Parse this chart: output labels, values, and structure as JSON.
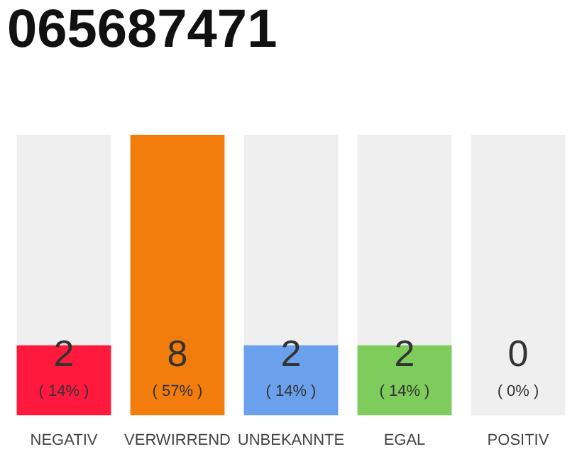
{
  "chart_data": {
    "type": "bar",
    "title": "065687471",
    "categories": [
      "NEGATIV",
      "VERWIRREND",
      "UNBEKANNTE",
      "EGAL",
      "POSITIV"
    ],
    "values": [
      2,
      8,
      2,
      2,
      0
    ],
    "colors": [
      "#ff1a3d",
      "#f27c0c",
      "#6aa0ec",
      "#7dcc5c",
      "#cccccc"
    ],
    "data_labels": true,
    "annotations": [
      "( 14% )",
      "( 57% )",
      "( 14% )",
      "( 14% )",
      "( 0% )"
    ],
    "bands": [
      {
        "axis": "x",
        "from": "NEGATIV",
        "to": "NEGATIV",
        "color": "#efefef"
      },
      {
        "axis": "x",
        "from": "UNBEKANNTE",
        "to": "UNBEKANNTE",
        "color": "#efefef"
      },
      {
        "axis": "x",
        "from": "EGAL",
        "to": "EGAL",
        "color": "#efefef"
      },
      {
        "axis": "x",
        "from": "POSITIV",
        "to": "POSITIV",
        "color": "#efefef"
      }
    ],
    "grid": false,
    "legend": false
  }
}
